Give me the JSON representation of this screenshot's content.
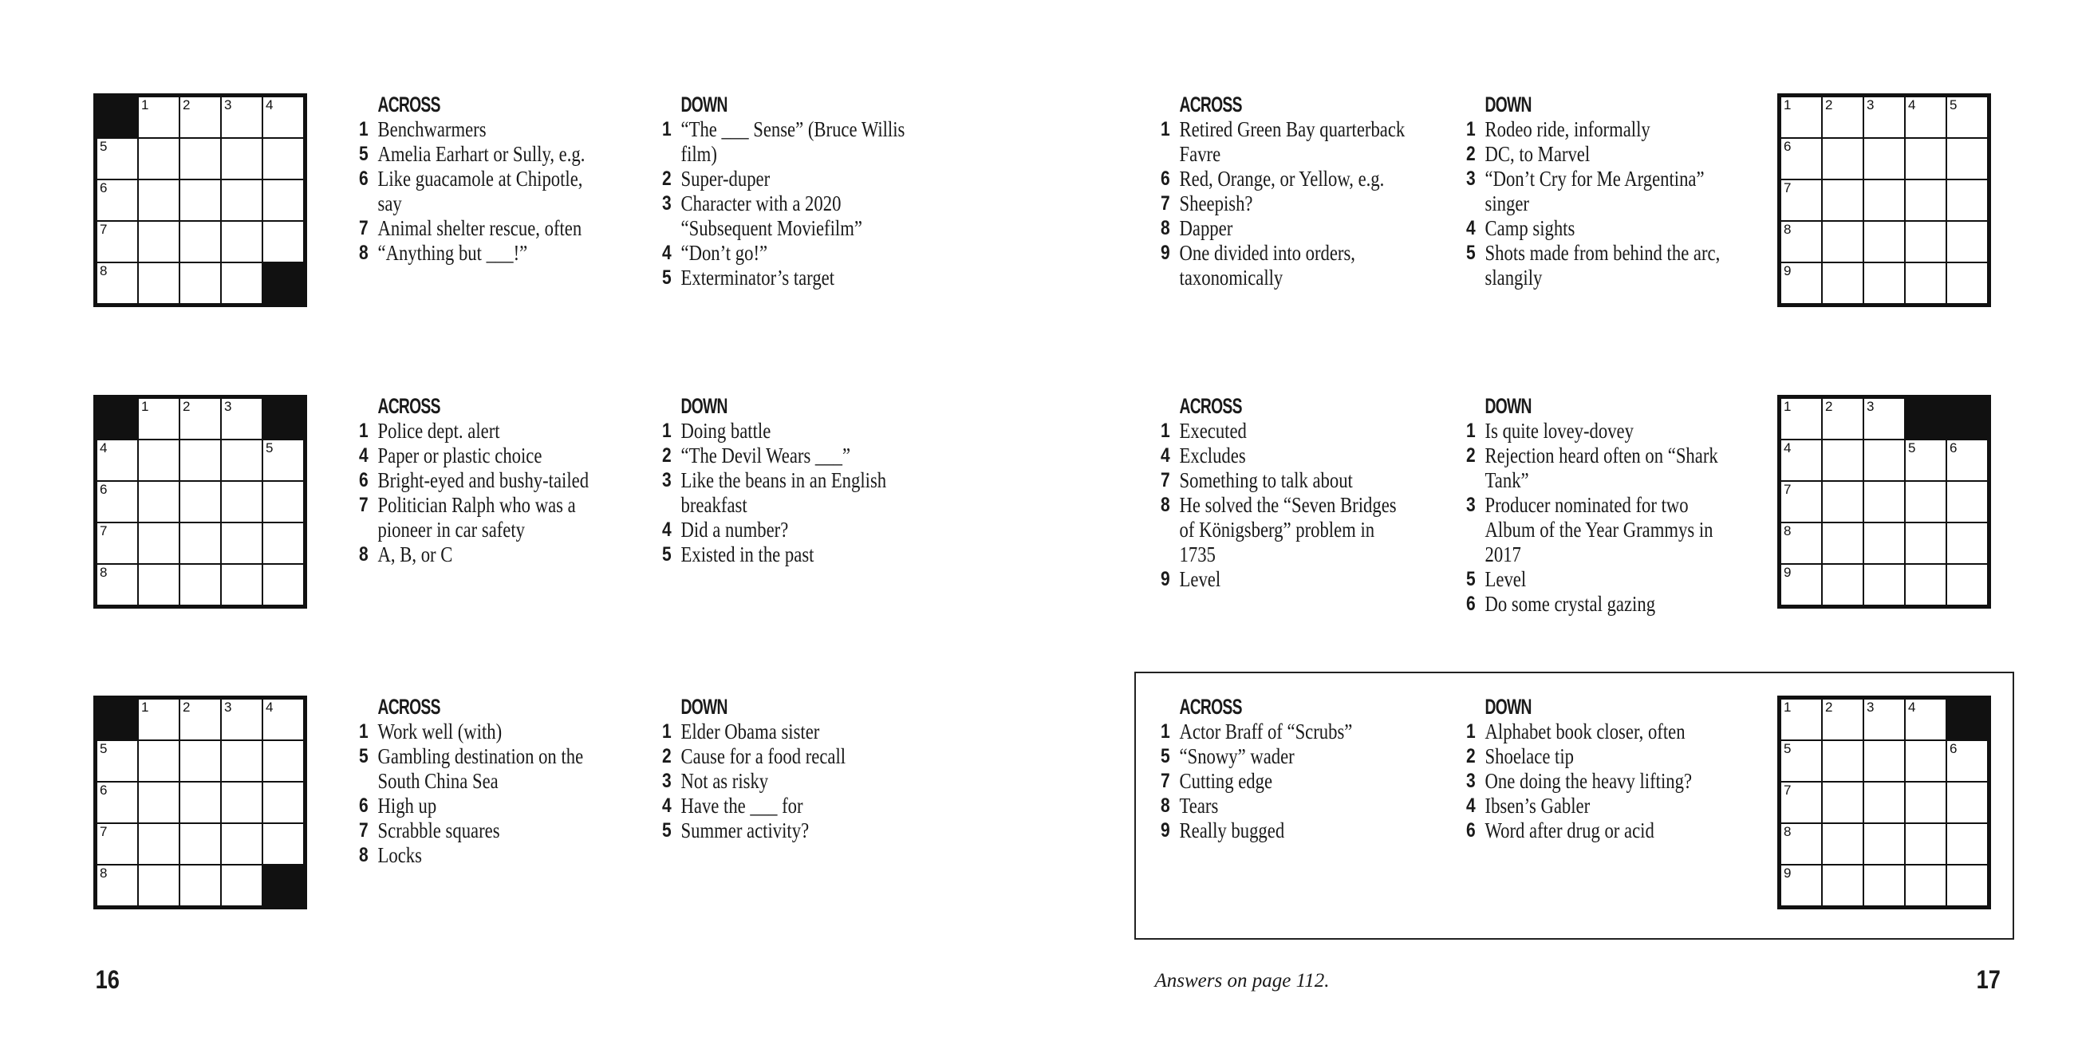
{
  "puzzles": [
    {
      "grid": [
        [
          "#",
          "1",
          "2",
          "3",
          "4"
        ],
        [
          "5",
          "",
          "",
          "",
          ""
        ],
        [
          "6",
          "",
          "",
          "",
          ""
        ],
        [
          "7",
          "",
          "",
          "",
          ""
        ],
        [
          "8",
          "",
          "",
          "",
          "#"
        ]
      ],
      "across_label": "ACROSS",
      "down_label": "DOWN",
      "across": [
        {
          "n": "1",
          "t": "Benchwarmers"
        },
        {
          "n": "5",
          "t": "Amelia Earhart or Sully, e.g."
        },
        {
          "n": "6",
          "t": "Like guacamole at Chipotle, say"
        },
        {
          "n": "7",
          "t": "Animal shelter rescue, often"
        },
        {
          "n": "8",
          "t": "“Anything but ___!”"
        }
      ],
      "down": [
        {
          "n": "1",
          "t": "“The ___ Sense” (Bruce Willis film)"
        },
        {
          "n": "2",
          "t": "Super-duper"
        },
        {
          "n": "3",
          "t": "Character with a 2020 “Subsequent Moviefilm”"
        },
        {
          "n": "4",
          "t": "“Don’t go!”"
        },
        {
          "n": "5",
          "t": "Exterminator’s target"
        }
      ]
    },
    {
      "grid": [
        [
          "1",
          "2",
          "3",
          "4",
          "5"
        ],
        [
          "6",
          "",
          "",
          "",
          ""
        ],
        [
          "7",
          "",
          "",
          "",
          ""
        ],
        [
          "8",
          "",
          "",
          "",
          ""
        ],
        [
          "9",
          "",
          "",
          "",
          ""
        ]
      ],
      "across_label": "ACROSS",
      "down_label": "DOWN",
      "across": [
        {
          "n": "1",
          "t": "Retired Green Bay quarterback Favre"
        },
        {
          "n": "6",
          "t": "Red, Orange, or Yellow, e.g."
        },
        {
          "n": "7",
          "t": "Sheepish?"
        },
        {
          "n": "8",
          "t": "Dapper"
        },
        {
          "n": "9",
          "t": "One divided into orders, taxonomically"
        }
      ],
      "down": [
        {
          "n": "1",
          "t": "Rodeo ride, informally"
        },
        {
          "n": "2",
          "t": "DC, to Marvel"
        },
        {
          "n": "3",
          "t": "“Don’t Cry for Me Argentina” singer"
        },
        {
          "n": "4",
          "t": "Camp sights"
        },
        {
          "n": "5",
          "t": "Shots made from behind the arc, slangily"
        }
      ]
    },
    {
      "grid": [
        [
          "#",
          "1",
          "2",
          "3",
          "#"
        ],
        [
          "4",
          "",
          "",
          "",
          "5"
        ],
        [
          "6",
          "",
          "",
          "",
          ""
        ],
        [
          "7",
          "",
          "",
          "",
          ""
        ],
        [
          "8",
          "",
          "",
          "",
          ""
        ]
      ],
      "across_label": "ACROSS",
      "down_label": "DOWN",
      "across": [
        {
          "n": "1",
          "t": "Police dept. alert"
        },
        {
          "n": "4",
          "t": "Paper or plastic choice"
        },
        {
          "n": "6",
          "t": "Bright-eyed and bushy-tailed"
        },
        {
          "n": "7",
          "t": "Politician Ralph who was a pioneer in car safety"
        },
        {
          "n": "8",
          "t": "A, B, or C"
        }
      ],
      "down": [
        {
          "n": "1",
          "t": "Doing battle"
        },
        {
          "n": "2",
          "t": "“The Devil Wears ___”"
        },
        {
          "n": "3",
          "t": "Like the beans in an English breakfast"
        },
        {
          "n": "4",
          "t": "Did a number?"
        },
        {
          "n": "5",
          "t": "Existed in the past"
        }
      ]
    },
    {
      "grid": [
        [
          "1",
          "2",
          "3",
          "#",
          "#"
        ],
        [
          "4",
          "",
          "",
          "5",
          "6"
        ],
        [
          "7",
          "",
          "",
          "",
          ""
        ],
        [
          "8",
          "",
          "",
          "",
          ""
        ],
        [
          "9",
          "",
          "",
          "",
          ""
        ]
      ],
      "across_label": "ACROSS",
      "down_label": "DOWN",
      "across": [
        {
          "n": "1",
          "t": "Executed"
        },
        {
          "n": "4",
          "t": "Excludes"
        },
        {
          "n": "7",
          "t": "Something to talk about"
        },
        {
          "n": "8",
          "t": "He solved the “Seven Bridges of Königsberg” problem in 1735"
        },
        {
          "n": "9",
          "t": "Level"
        }
      ],
      "down": [
        {
          "n": "1",
          "t": "Is quite lovey-dovey"
        },
        {
          "n": "2",
          "t": "Rejection heard often on “Shark Tank”"
        },
        {
          "n": "3",
          "t": "Producer nominated for two Album of the Year Grammys in 2017"
        },
        {
          "n": "5",
          "t": "Level"
        },
        {
          "n": "6",
          "t": "Do some crystal gazing"
        }
      ]
    },
    {
      "grid": [
        [
          "#",
          "1",
          "2",
          "3",
          "4"
        ],
        [
          "5",
          "",
          "",
          "",
          ""
        ],
        [
          "6",
          "",
          "",
          "",
          ""
        ],
        [
          "7",
          "",
          "",
          "",
          ""
        ],
        [
          "8",
          "",
          "",
          "",
          "#"
        ]
      ],
      "across_label": "ACROSS",
      "down_label": "DOWN",
      "across": [
        {
          "n": "1",
          "t": "Work well (with)"
        },
        {
          "n": "5",
          "t": "Gambling destination on the South China Sea"
        },
        {
          "n": "6",
          "t": "High up"
        },
        {
          "n": "7",
          "t": "Scrabble squares"
        },
        {
          "n": "8",
          "t": "Locks"
        }
      ],
      "down": [
        {
          "n": "1",
          "t": "Elder Obama sister"
        },
        {
          "n": "2",
          "t": "Cause for a food recall"
        },
        {
          "n": "3",
          "t": "Not as risky"
        },
        {
          "n": "4",
          "t": "Have the ___ for"
        },
        {
          "n": "5",
          "t": "Summer activity?"
        }
      ]
    },
    {
      "grid": [
        [
          "1",
          "2",
          "3",
          "4",
          "#"
        ],
        [
          "5",
          "",
          "",
          "",
          "6"
        ],
        [
          "7",
          "",
          "",
          "",
          ""
        ],
        [
          "8",
          "",
          "",
          "",
          ""
        ],
        [
          "9",
          "",
          "",
          "",
          ""
        ]
      ],
      "across_label": "ACROSS",
      "down_label": "DOWN",
      "across": [
        {
          "n": "1",
          "t": "Actor Braff of “Scrubs”"
        },
        {
          "n": "5",
          "t": "“Snowy” wader"
        },
        {
          "n": "7",
          "t": "Cutting edge"
        },
        {
          "n": "8",
          "t": "Tears"
        },
        {
          "n": "9",
          "t": "Really bugged"
        }
      ],
      "down": [
        {
          "n": "1",
          "t": "Alphabet book closer, often"
        },
        {
          "n": "2",
          "t": "Shoelace tip"
        },
        {
          "n": "3",
          "t": "One doing the heavy lifting?"
        },
        {
          "n": "4",
          "t": "Ibsen’s Gabler"
        },
        {
          "n": "6",
          "t": "Word after drug or acid"
        }
      ]
    }
  ],
  "footer": {
    "left_page": "16",
    "right_page": "17",
    "note": "Answers on page 112."
  }
}
